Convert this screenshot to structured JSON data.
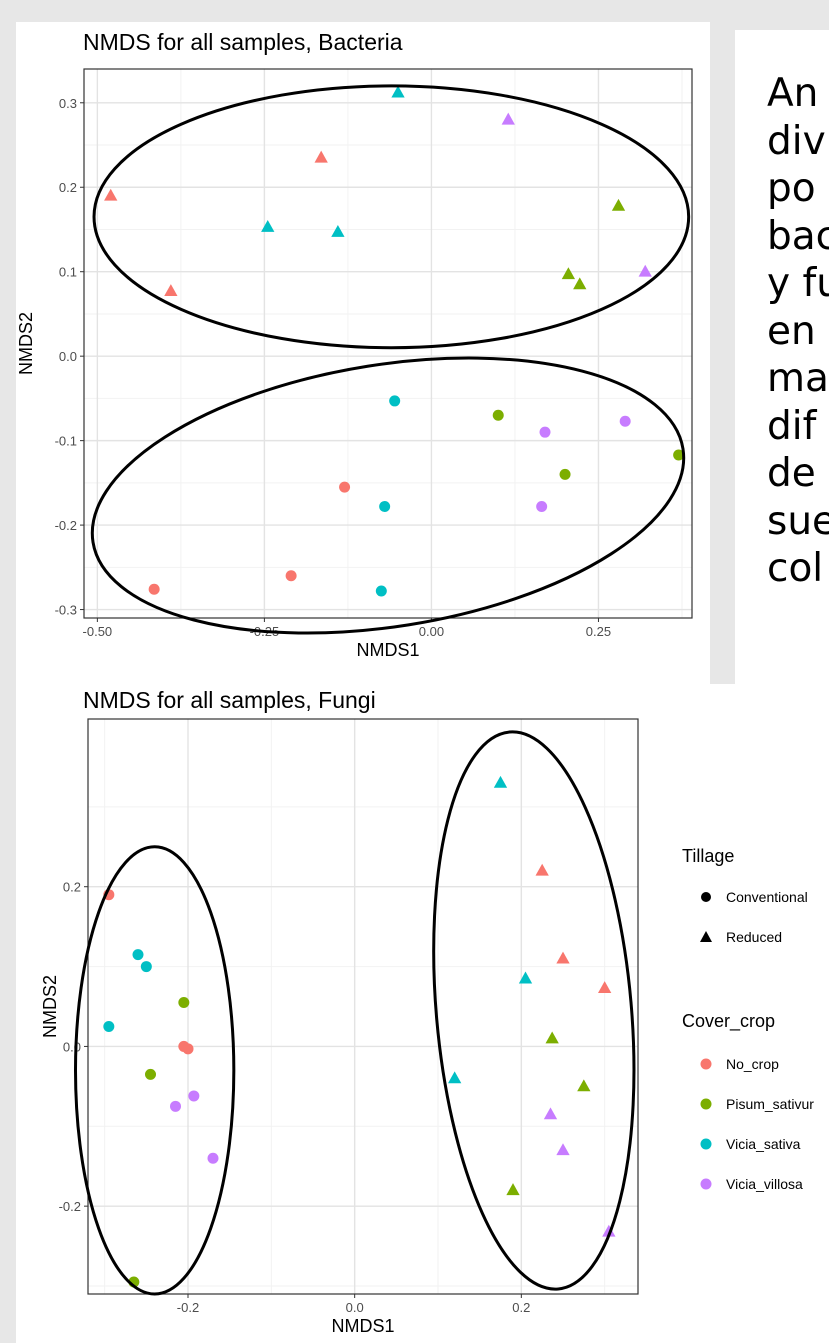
{
  "side_text": {
    "lines": [
      "An",
      "div",
      "po",
      "bac",
      "y fu",
      "en",
      "ma",
      "dif",
      "de",
      "sue",
      "col"
    ]
  },
  "colors": {
    "No_crop": "#f8766d",
    "Pisum_sativum": "#7cae00",
    "Vicia_sativa": "#00bfc4",
    "Vicia_villosa": "#c77cff"
  },
  "legend": {
    "tillage_title": "Tillage",
    "tillage_items": [
      {
        "label": "Conventional",
        "shape": "circle"
      },
      {
        "label": "Reduced",
        "shape": "triangle"
      }
    ],
    "cover_title": "Cover_crop",
    "cover_items": [
      {
        "label": "No_crop",
        "key": "No_crop"
      },
      {
        "label": "Pisum_sativur",
        "key": "Pisum_sativum"
      },
      {
        "label": "Vicia_sativa",
        "key": "Vicia_sativa"
      },
      {
        "label": "Vicia_villosa",
        "key": "Vicia_villosa"
      }
    ]
  },
  "chart_data": [
    {
      "type": "scatter",
      "title": "NMDS for all samples, Bacteria",
      "xlabel": "NMDS1",
      "ylabel": "NMDS2",
      "xlim": [
        -0.52,
        0.39
      ],
      "ylim": [
        -0.31,
        0.34
      ],
      "xticks": [
        -0.5,
        -0.25,
        0.0,
        0.25
      ],
      "xtick_labels": [
        "-0.50",
        "-0.25",
        "0.00",
        "0.25"
      ],
      "yticks": [
        -0.3,
        -0.2,
        -0.1,
        0.0,
        0.1,
        0.2,
        0.3
      ],
      "ytick_labels": [
        "-0.3",
        "-0.2",
        "-0.1",
        "0.0",
        "0.1",
        "0.2",
        "0.3"
      ],
      "grid": true,
      "ellipses": [
        {
          "cx": -0.06,
          "cy": 0.165,
          "rx": 0.445,
          "ry": 0.155
        },
        {
          "cx": -0.065,
          "cy": -0.165,
          "rx": 0.447,
          "ry": 0.155,
          "angle": 9
        }
      ],
      "points": [
        {
          "x": -0.48,
          "y": 0.19,
          "tillage": "Reduced",
          "cover": "No_crop"
        },
        {
          "x": -0.39,
          "y": 0.077,
          "tillage": "Reduced",
          "cover": "No_crop"
        },
        {
          "x": -0.165,
          "y": 0.235,
          "tillage": "Reduced",
          "cover": "No_crop"
        },
        {
          "x": -0.05,
          "y": 0.312,
          "tillage": "Reduced",
          "cover": "Vicia_sativa"
        },
        {
          "x": -0.245,
          "y": 0.153,
          "tillage": "Reduced",
          "cover": "Vicia_sativa"
        },
        {
          "x": -0.14,
          "y": 0.147,
          "tillage": "Reduced",
          "cover": "Vicia_sativa"
        },
        {
          "x": 0.115,
          "y": 0.28,
          "tillage": "Reduced",
          "cover": "Vicia_villosa"
        },
        {
          "x": 0.32,
          "y": 0.1,
          "tillage": "Reduced",
          "cover": "Vicia_villosa"
        },
        {
          "x": 0.28,
          "y": 0.178,
          "tillage": "Reduced",
          "cover": "Pisum_sativum"
        },
        {
          "x": 0.205,
          "y": 0.097,
          "tillage": "Reduced",
          "cover": "Pisum_sativum"
        },
        {
          "x": 0.222,
          "y": 0.085,
          "tillage": "Reduced",
          "cover": "Pisum_sativum"
        },
        {
          "x": -0.055,
          "y": -0.053,
          "tillage": "Conventional",
          "cover": "Vicia_sativa"
        },
        {
          "x": -0.07,
          "y": -0.178,
          "tillage": "Conventional",
          "cover": "Vicia_sativa"
        },
        {
          "x": -0.075,
          "y": -0.278,
          "tillage": "Conventional",
          "cover": "Vicia_sativa"
        },
        {
          "x": 0.1,
          "y": -0.07,
          "tillage": "Conventional",
          "cover": "Pisum_sativum"
        },
        {
          "x": 0.2,
          "y": -0.14,
          "tillage": "Conventional",
          "cover": "Pisum_sativum"
        },
        {
          "x": 0.37,
          "y": -0.117,
          "tillage": "Conventional",
          "cover": "Pisum_sativum"
        },
        {
          "x": 0.17,
          "y": -0.09,
          "tillage": "Conventional",
          "cover": "Vicia_villosa"
        },
        {
          "x": 0.29,
          "y": -0.077,
          "tillage": "Conventional",
          "cover": "Vicia_villosa"
        },
        {
          "x": 0.165,
          "y": -0.178,
          "tillage": "Conventional",
          "cover": "Vicia_villosa"
        },
        {
          "x": -0.13,
          "y": -0.155,
          "tillage": "Conventional",
          "cover": "No_crop"
        },
        {
          "x": -0.21,
          "y": -0.26,
          "tillage": "Conventional",
          "cover": "No_crop"
        },
        {
          "x": -0.415,
          "y": -0.276,
          "tillage": "Conventional",
          "cover": "No_crop"
        }
      ]
    },
    {
      "type": "scatter",
      "title": "NMDS for all samples, Fungi",
      "xlabel": "NMDS1",
      "ylabel": "NMDS2",
      "xlim": [
        -0.32,
        0.34
      ],
      "ylim": [
        -0.31,
        0.41
      ],
      "xticks": [
        -0.2,
        0.0,
        0.2
      ],
      "xtick_labels": [
        "-0.2",
        "0.0",
        "0.2"
      ],
      "yticks": [
        -0.2,
        0.0,
        0.2
      ],
      "ytick_labels": [
        "-0.2",
        "0.0",
        "0.2"
      ],
      "grid": true,
      "ellipses": [
        {
          "cx": -0.24,
          "cy": -0.03,
          "rx": 0.095,
          "ry": 0.28
        },
        {
          "cx": 0.215,
          "cy": 0.045,
          "rx": 0.117,
          "ry": 0.35,
          "angle": 5
        }
      ],
      "points": [
        {
          "x": -0.295,
          "y": 0.19,
          "tillage": "Conventional",
          "cover": "No_crop"
        },
        {
          "x": -0.205,
          "y": 0.0,
          "tillage": "Conventional",
          "cover": "No_crop"
        },
        {
          "x": -0.2,
          "y": -0.003,
          "tillage": "Conventional",
          "cover": "No_crop"
        },
        {
          "x": -0.26,
          "y": 0.115,
          "tillage": "Conventional",
          "cover": "Vicia_sativa"
        },
        {
          "x": -0.25,
          "y": 0.1,
          "tillage": "Conventional",
          "cover": "Vicia_sativa"
        },
        {
          "x": -0.295,
          "y": 0.025,
          "tillage": "Conventional",
          "cover": "Vicia_sativa"
        },
        {
          "x": -0.205,
          "y": 0.055,
          "tillage": "Conventional",
          "cover": "Pisum_sativum"
        },
        {
          "x": -0.245,
          "y": -0.035,
          "tillage": "Conventional",
          "cover": "Pisum_sativum"
        },
        {
          "x": -0.265,
          "y": -0.295,
          "tillage": "Conventional",
          "cover": "Pisum_sativum"
        },
        {
          "x": -0.215,
          "y": -0.075,
          "tillage": "Conventional",
          "cover": "Vicia_villosa"
        },
        {
          "x": -0.193,
          "y": -0.062,
          "tillage": "Conventional",
          "cover": "Vicia_villosa"
        },
        {
          "x": -0.17,
          "y": -0.14,
          "tillage": "Conventional",
          "cover": "Vicia_villosa"
        },
        {
          "x": 0.175,
          "y": 0.33,
          "tillage": "Reduced",
          "cover": "Vicia_sativa"
        },
        {
          "x": 0.205,
          "y": 0.085,
          "tillage": "Reduced",
          "cover": "Vicia_sativa"
        },
        {
          "x": 0.12,
          "y": -0.04,
          "tillage": "Reduced",
          "cover": "Vicia_sativa"
        },
        {
          "x": 0.225,
          "y": 0.22,
          "tillage": "Reduced",
          "cover": "No_crop"
        },
        {
          "x": 0.25,
          "y": 0.11,
          "tillage": "Reduced",
          "cover": "No_crop"
        },
        {
          "x": 0.3,
          "y": 0.073,
          "tillage": "Reduced",
          "cover": "No_crop"
        },
        {
          "x": 0.237,
          "y": 0.01,
          "tillage": "Reduced",
          "cover": "Pisum_sativum"
        },
        {
          "x": 0.275,
          "y": -0.05,
          "tillage": "Reduced",
          "cover": "Pisum_sativum"
        },
        {
          "x": 0.19,
          "y": -0.18,
          "tillage": "Reduced",
          "cover": "Pisum_sativum"
        },
        {
          "x": 0.235,
          "y": -0.085,
          "tillage": "Reduced",
          "cover": "Vicia_villosa"
        },
        {
          "x": 0.25,
          "y": -0.13,
          "tillage": "Reduced",
          "cover": "Vicia_villosa"
        },
        {
          "x": 0.305,
          "y": -0.232,
          "tillage": "Reduced",
          "cover": "Vicia_villosa"
        }
      ]
    }
  ]
}
